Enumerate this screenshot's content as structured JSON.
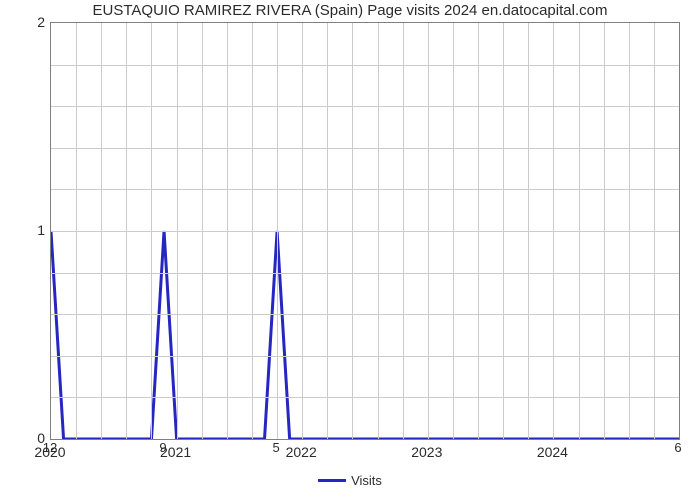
{
  "chart": {
    "type": "line",
    "title": "EUSTAQUIO RAMIREZ RIVERA (Spain) Page visits 2024 en.datocapital.com",
    "title_fontsize": 15,
    "title_color": "#2b2b2b",
    "background_color": "#ffffff",
    "plot_border_color": "#7f7f7f",
    "grid_color": "#cccccc",
    "series": {
      "name": "Visits",
      "color": "#2626c0",
      "line_width": 3,
      "x": [
        0.0,
        0.02,
        0.16,
        0.18,
        0.2,
        0.34,
        0.36,
        0.38,
        0.98,
        1.0
      ],
      "y": [
        1,
        0,
        0,
        1,
        0,
        0,
        1,
        0,
        0,
        0
      ],
      "point_labels": [
        {
          "x": 0.0,
          "label": "12"
        },
        {
          "x": 0.18,
          "label": "9"
        },
        {
          "x": 0.36,
          "label": "5"
        },
        {
          "x": 1.0,
          "label": "6"
        }
      ]
    },
    "x_axis": {
      "ticks": [
        0.0,
        0.2,
        0.4,
        0.6,
        0.8,
        1.0
      ],
      "tick_labels": [
        "2020",
        "2021",
        "2022",
        "2023",
        "2024",
        ""
      ],
      "minor_grid_per_major": 5,
      "label_fontsize": 14,
      "label_color": "#2b2b2b"
    },
    "y_axis": {
      "ylim": [
        0,
        2
      ],
      "major_ticks": [
        0,
        1,
        2
      ],
      "minor_tick_step": 0.2,
      "label_fontsize": 14,
      "label_color": "#2b2b2b"
    },
    "legend": {
      "label": "Visits",
      "swatch_color": "#2626c0",
      "fontsize": 13
    }
  }
}
